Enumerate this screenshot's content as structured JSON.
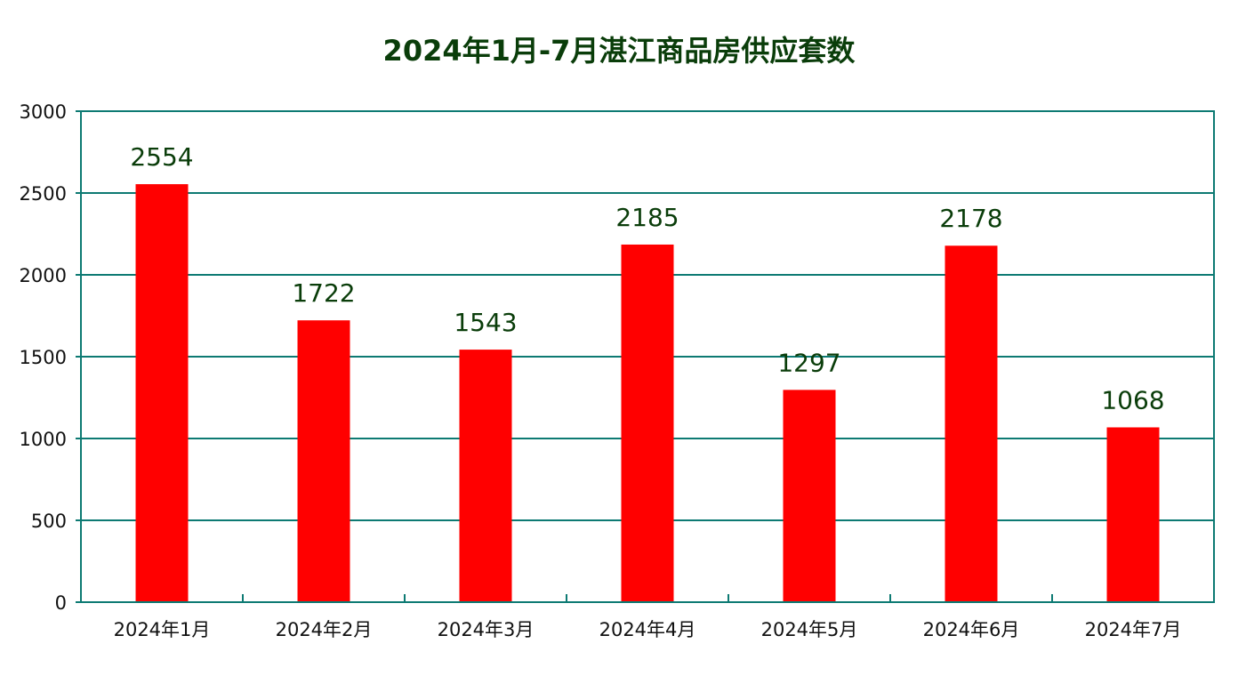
{
  "chart_data": {
    "type": "bar",
    "title": "2024年1月-7月湛江商品房供应套数",
    "categories": [
      "2024年1月",
      "2024年2月",
      "2024年3月",
      "2024年4月",
      "2024年5月",
      "2024年6月",
      "2024年7月"
    ],
    "values": [
      2554,
      1722,
      1543,
      2185,
      1297,
      2178,
      1068
    ],
    "xlabel": "",
    "ylabel": "",
    "ylim": [
      0,
      3000
    ],
    "yticks": [
      0,
      500,
      1000,
      1500,
      2000,
      2500,
      3000
    ],
    "grid": true,
    "legend": "none",
    "colors": {
      "bar": "#ff0000",
      "axis": "#0d7a73",
      "title": "#0a3d0a",
      "data_label": "#0a3d0a",
      "tick_label": "#111111"
    }
  }
}
